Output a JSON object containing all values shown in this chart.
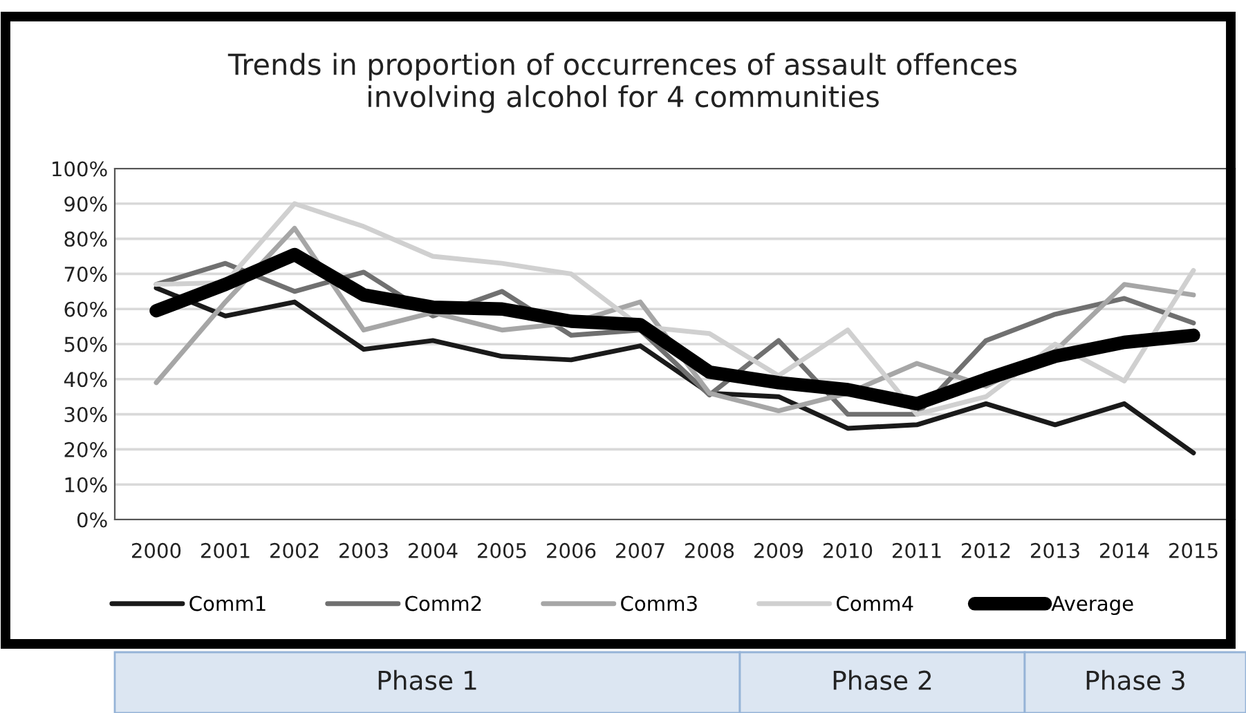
{
  "chart_data": {
    "type": "line",
    "title": "Trends in proportion of occurrences of assault offences\ninvolving alcohol for 4 communities",
    "categories": [
      "2000",
      "2001",
      "2002",
      "2003",
      "2004",
      "2005",
      "2006",
      "2007",
      "2008",
      "2009",
      "2010",
      "2011",
      "2012",
      "2013",
      "2014",
      "2015"
    ],
    "series": [
      {
        "name": "Comm1",
        "color": "#1a1a1a",
        "values": [
          66,
          58,
          62,
          48.5,
          51,
          46.5,
          45.5,
          49.5,
          36,
          35,
          26,
          27,
          33,
          27,
          33,
          19
        ]
      },
      {
        "name": "Comm2",
        "color": "#707070",
        "values": [
          67,
          73,
          65,
          70.5,
          58,
          65,
          52.5,
          54,
          35.5,
          51,
          30,
          30,
          51,
          58.5,
          63,
          56
        ]
      },
      {
        "name": "Comm3",
        "color": "#a6a6a6",
        "values": [
          39,
          62,
          83,
          54,
          59,
          54,
          56,
          62,
          36,
          31,
          36,
          44.5,
          38,
          48,
          67,
          64
        ]
      },
      {
        "name": "Comm4",
        "color": "#d0d0d0",
        "values": [
          67,
          67.5,
          90,
          83.5,
          75,
          73,
          70,
          55,
          53,
          41,
          54,
          30,
          35,
          50,
          39.5,
          71
        ]
      },
      {
        "name": "Average",
        "color": "#000000",
        "values": [
          59.5,
          67,
          75.5,
          64,
          60.5,
          60,
          56.5,
          55.5,
          42,
          39,
          37,
          33,
          40,
          46.5,
          50.5,
          52.5
        ]
      }
    ],
    "ylim": [
      0,
      100
    ],
    "yticks": [
      {
        "value": 0,
        "label": "0%"
      },
      {
        "value": 10,
        "label": "10%"
      },
      {
        "value": 20,
        "label": "20%"
      },
      {
        "value": 30,
        "label": "30%"
      },
      {
        "value": 40,
        "label": "40%"
      },
      {
        "value": 50,
        "label": "50%"
      },
      {
        "value": 60,
        "label": "60%"
      },
      {
        "value": 70,
        "label": "70%"
      },
      {
        "value": 80,
        "label": "80%"
      },
      {
        "value": 90,
        "label": "90%"
      },
      {
        "value": 100,
        "label": "100%"
      }
    ],
    "grid": "y",
    "legend": "bottom",
    "marker": "none",
    "line_style": "solid",
    "annotations": [
      "Phase 1",
      "Phase 2",
      "Phase 3"
    ]
  }
}
